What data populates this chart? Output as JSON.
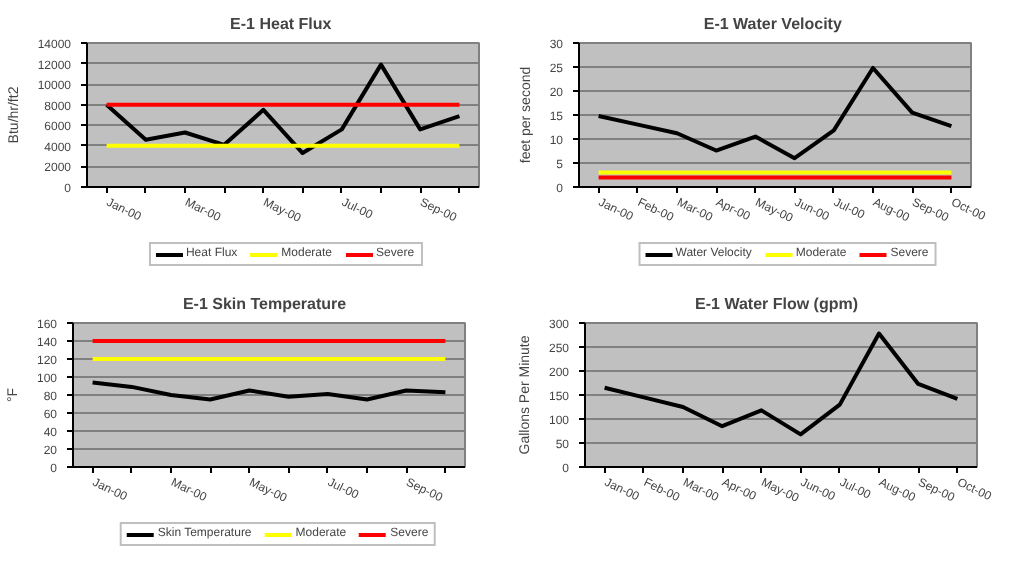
{
  "chart_data": [
    {
      "type": "line",
      "title": "E-1  Heat Flux",
      "ylabel": "Btu/hr/ft2",
      "categories": [
        "Jan-00",
        null,
        "Mar-00",
        null,
        "May-00",
        null,
        "Jul-00",
        null,
        "Sep-00",
        null
      ],
      "ylim": [
        0,
        14000
      ],
      "yticks": [
        0,
        2000,
        4000,
        6000,
        8000,
        10000,
        12000,
        14000
      ],
      "grid": "y",
      "legend": "bottom",
      "series": [
        {
          "name": "Heat Flux",
          "color": "#000000",
          "values": [
            8000,
            4600,
            5300,
            4100,
            7500,
            3300,
            5600,
            11900,
            5600,
            6900
          ]
        },
        {
          "name": "Moderate",
          "color": "#ffff00",
          "values": [
            4000,
            4000,
            4000,
            4000,
            4000,
            4000,
            4000,
            4000,
            4000,
            4000
          ]
        },
        {
          "name": "Severe",
          "color": "#ff0000",
          "values": [
            8000,
            8000,
            8000,
            8000,
            8000,
            8000,
            8000,
            8000,
            8000,
            8000
          ]
        }
      ]
    },
    {
      "type": "line",
      "title": "E-1  Water Velocity",
      "ylabel": "feet per second",
      "categories": [
        "Jan-00",
        "Feb-00",
        "Mar-00",
        "Apr-00",
        "May-00",
        "Jun-00",
        "Jul-00",
        "Aug-00",
        "Sep-00",
        "Oct-00"
      ],
      "ylim": [
        0,
        30
      ],
      "yticks": [
        0,
        5,
        10,
        15,
        20,
        25,
        30
      ],
      "grid": "y",
      "legend": "bottom",
      "series": [
        {
          "name": "Water Velocity",
          "color": "#000000",
          "values": [
            14.8,
            13,
            11.2,
            7.6,
            10.5,
            6,
            11.8,
            24.8,
            15.5,
            12.7
          ]
        },
        {
          "name": "Moderate",
          "color": "#ffff00",
          "values": [
            3,
            3,
            3,
            3,
            3,
            3,
            3,
            3,
            3,
            3
          ]
        },
        {
          "name": "Severe",
          "color": "#ff0000",
          "values": [
            2,
            2,
            2,
            2,
            2,
            2,
            2,
            2,
            2,
            2
          ]
        }
      ]
    },
    {
      "type": "line",
      "title": "E-1  Skin  Temperature",
      "ylabel": "°F",
      "categories": [
        "Jan-00",
        null,
        "Mar-00",
        null,
        "May-00",
        null,
        "Jul-00",
        null,
        "Sep-00",
        null
      ],
      "ylim": [
        0,
        160
      ],
      "yticks": [
        0,
        20,
        40,
        60,
        80,
        100,
        120,
        140,
        160
      ],
      "grid": "y",
      "legend": "bottom",
      "series": [
        {
          "name": "Skin Temperature",
          "color": "#000000",
          "values": [
            94,
            89,
            80,
            75,
            85,
            78,
            81,
            75,
            85,
            83
          ]
        },
        {
          "name": "Moderate",
          "color": "#ffff00",
          "values": [
            120,
            120,
            120,
            120,
            120,
            120,
            120,
            120,
            120,
            120
          ]
        },
        {
          "name": "Severe",
          "color": "#ff0000",
          "values": [
            140,
            140,
            140,
            140,
            140,
            140,
            140,
            140,
            140,
            140
          ]
        }
      ]
    },
    {
      "type": "line",
      "title": "E-1  Water Flow  (gpm)",
      "ylabel": "Gallons Per Minute",
      "categories": [
        "Jan-00",
        "Feb-00",
        "Mar-00",
        "Apr-00",
        "May-00",
        "Jun-00",
        "Jul-00",
        "Aug-00",
        "Sep-00",
        "Oct-00"
      ],
      "ylim": [
        0,
        300
      ],
      "yticks": [
        0,
        50,
        100,
        150,
        200,
        250,
        300
      ],
      "grid": "y",
      "series": [
        {
          "color": "#000000",
          "values": [
            165,
            145,
            125,
            85,
            118,
            68,
            130,
            278,
            173,
            142
          ]
        }
      ]
    }
  ]
}
